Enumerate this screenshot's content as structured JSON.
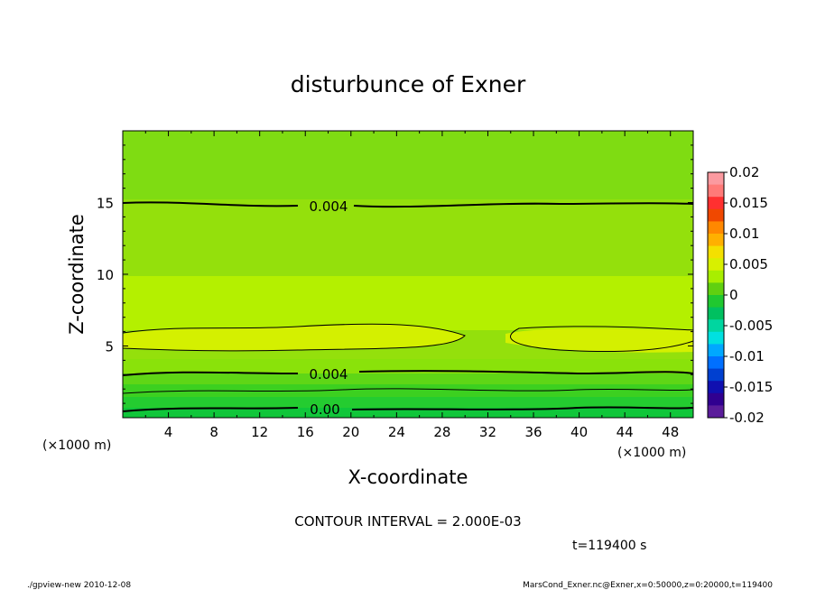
{
  "chart_data": {
    "type": "heatmap",
    "title": "disturbunce of Exner",
    "xlabel": "X-coordinate",
    "ylabel": "Z-coordinate",
    "x_unit": "(×1000 m)",
    "y_unit": "(×1000 m)",
    "xlim": [
      0,
      50
    ],
    "ylim": [
      0,
      20
    ],
    "x_ticks": [
      "4",
      "8",
      "12",
      "16",
      "20",
      "24",
      "28",
      "32",
      "36",
      "40",
      "44",
      "48"
    ],
    "y_ticks": [
      "5",
      "10",
      "15"
    ],
    "colorbar": {
      "ticks": [
        "0.02",
        "0.015",
        "0.01",
        "0.005",
        "0",
        "-0.005",
        "-0.01",
        "-0.015",
        "-0.02"
      ],
      "range": [
        -0.02,
        0.02
      ]
    },
    "contour_interval_text": "CONTOUR INTERVAL = 2.000E-03",
    "contour_labels": [
      "0.004",
      "0.004",
      "0.00"
    ],
    "time_text": "t=119400 s",
    "field_profile": [
      {
        "z": 0.2,
        "value": 0.0005
      },
      {
        "z": 1.0,
        "value": 0.0015
      },
      {
        "z": 2.0,
        "value": 0.0025
      },
      {
        "z": 3.0,
        "value": 0.0042
      },
      {
        "z": 5.0,
        "value": 0.0062
      },
      {
        "z": 6.5,
        "value": 0.0055
      },
      {
        "z": 9.0,
        "value": 0.005
      },
      {
        "z": 12.0,
        "value": 0.0045
      },
      {
        "z": 15.0,
        "value": 0.004
      },
      {
        "z": 20.0,
        "value": 0.0035
      }
    ]
  },
  "footer": {
    "left": "./gpview-new   2010-12-08",
    "right": "MarsCond_Exner.nc@Exner,x=0:50000,z=0:20000,t=119400"
  }
}
